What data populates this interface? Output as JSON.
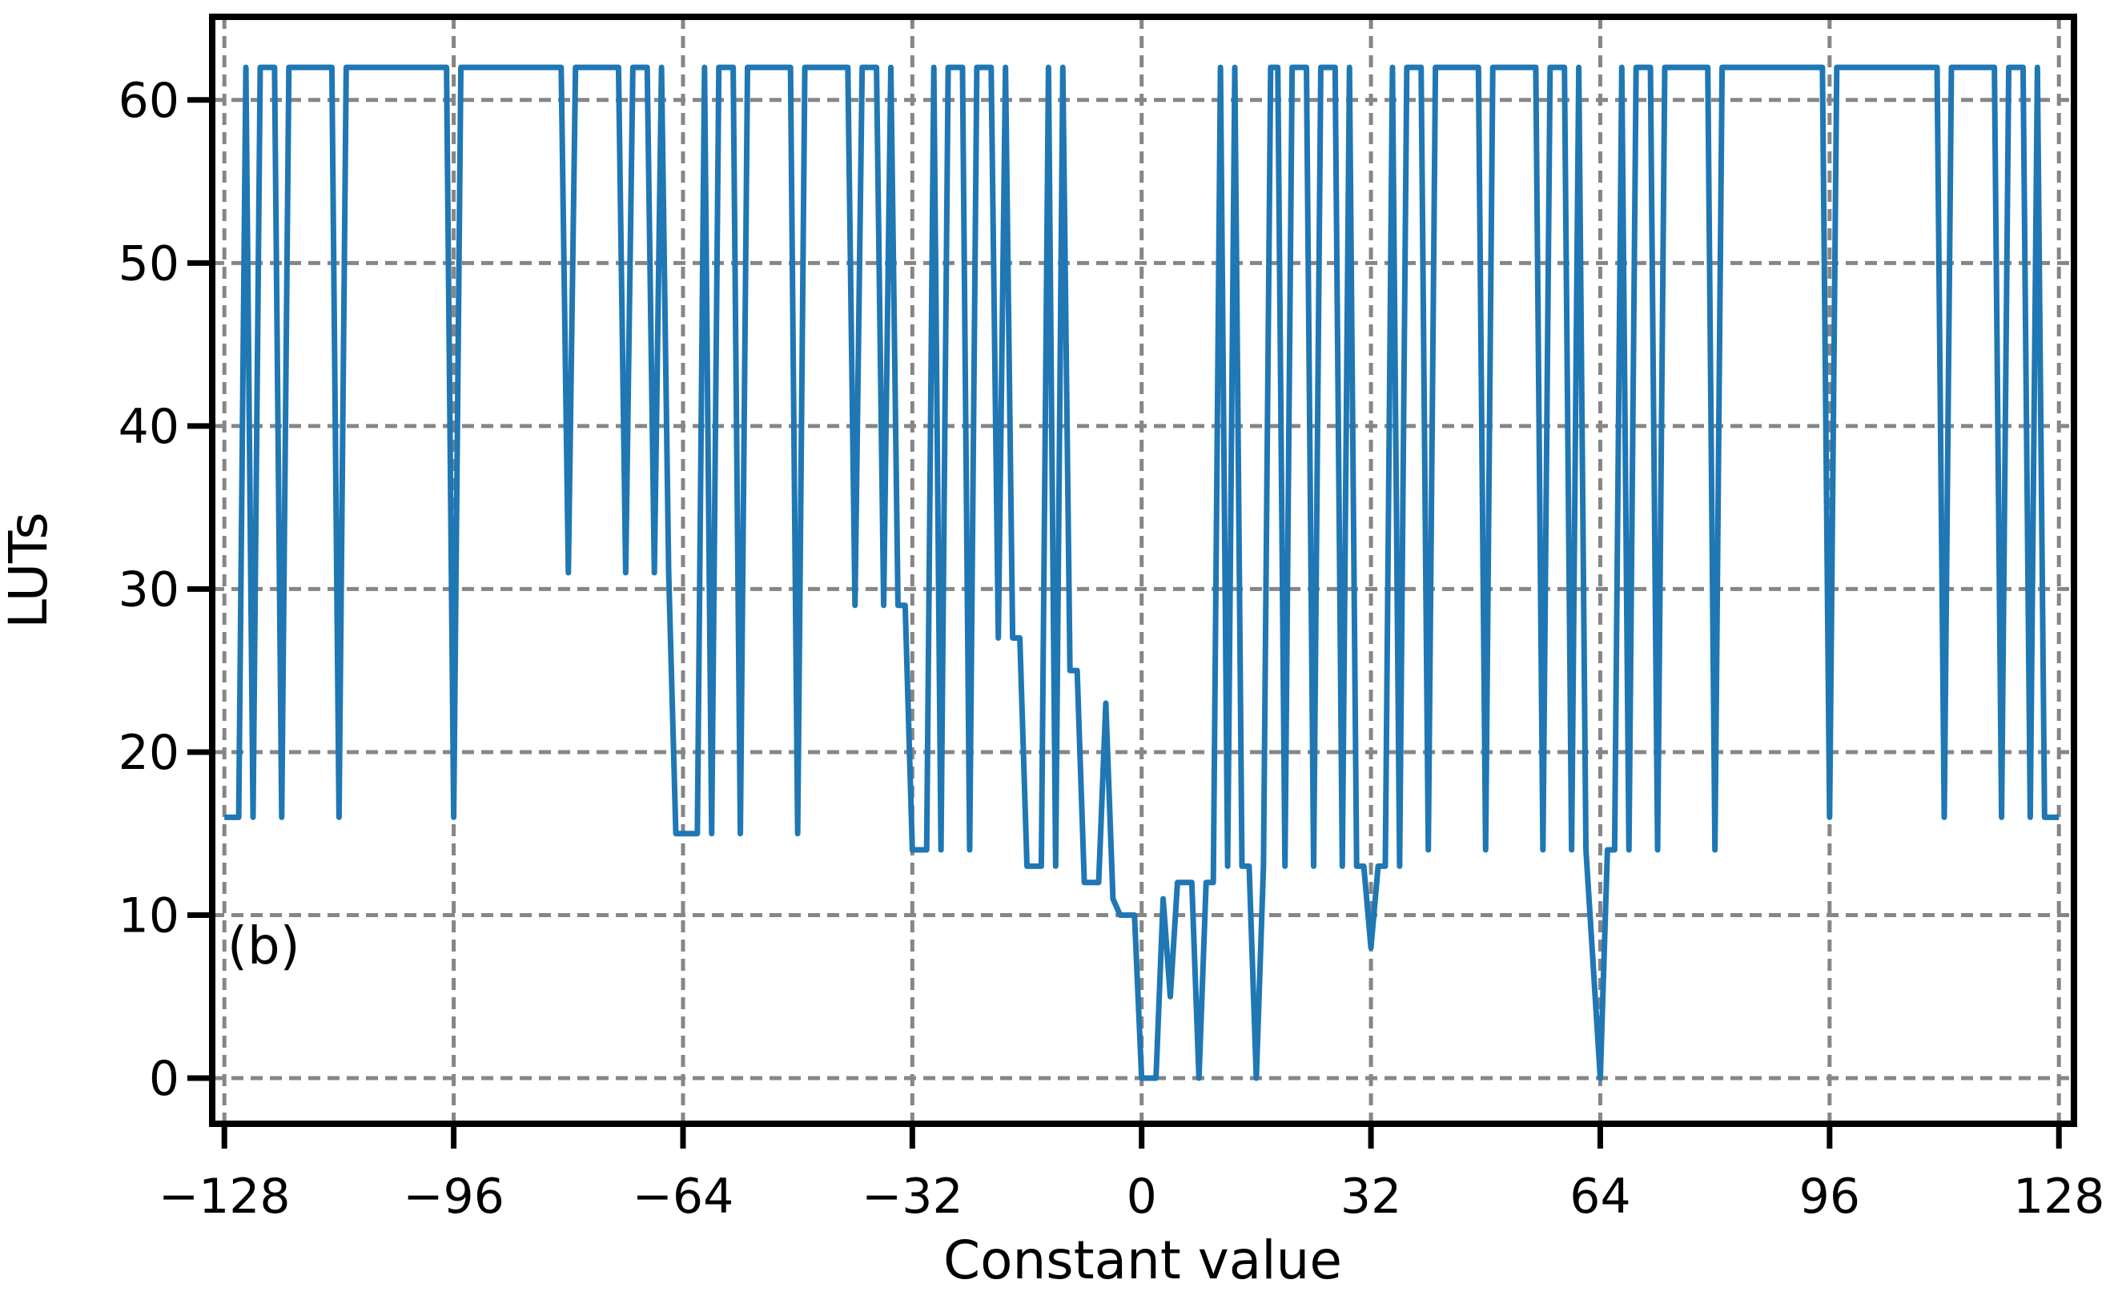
{
  "chart_data": {
    "type": "line",
    "title": "",
    "xlabel": "Constant value",
    "ylabel": "LUTs",
    "panel_label": "(b)",
    "x_start": -128,
    "x_step": 1,
    "xlim": [
      -129.7,
      130.1
    ],
    "ylim": [
      -2.8,
      65.1
    ],
    "xticks": [
      -128,
      -96,
      -64,
      -32,
      0,
      32,
      64,
      96,
      128
    ],
    "xtick_labels": [
      "−128",
      "−96",
      "−64",
      "−32",
      "0",
      "32",
      "64",
      "96",
      "128"
    ],
    "yticks": [
      0,
      10,
      20,
      30,
      40,
      50,
      60
    ],
    "ytick_labels": [
      "0",
      "10",
      "20",
      "30",
      "40",
      "50",
      "60"
    ],
    "grid": true,
    "grid_style": "dashed",
    "legend": "none",
    "line_color": "#1f77b4",
    "grid_color": "#868686",
    "spine_color": "#000000",
    "background_color": "#ffffff",
    "y_max_observed": 62,
    "y_min_observed": 0,
    "values": [
      16,
      16,
      16,
      62,
      16,
      62,
      62,
      62,
      16,
      62,
      62,
      62,
      62,
      62,
      62,
      62,
      16,
      62,
      62,
      62,
      62,
      62,
      62,
      62,
      62,
      62,
      62,
      62,
      62,
      62,
      62,
      62,
      16,
      62,
      62,
      62,
      62,
      62,
      62,
      62,
      62,
      62,
      62,
      62,
      62,
      62,
      62,
      62,
      31,
      62,
      62,
      62,
      62,
      62,
      62,
      62,
      31,
      62,
      62,
      62,
      31,
      62,
      31,
      15,
      15,
      15,
      15,
      62,
      15,
      62,
      62,
      62,
      15,
      62,
      62,
      62,
      62,
      62,
      62,
      62,
      15,
      62,
      62,
      62,
      62,
      62,
      62,
      62,
      29,
      62,
      62,
      62,
      29,
      62,
      29,
      29,
      14,
      14,
      14,
      62,
      14,
      62,
      62,
      62,
      14,
      62,
      62,
      62,
      27,
      62,
      27,
      27,
      13,
      13,
      13,
      62,
      13,
      62,
      25,
      25,
      12,
      12,
      12,
      23,
      11,
      10,
      10,
      10,
      0,
      0,
      0,
      11,
      5,
      12,
      12,
      12,
      0,
      12,
      12,
      62,
      13,
      62,
      13,
      13,
      0,
      13,
      62,
      62,
      13,
      62,
      62,
      62,
      13,
      62,
      62,
      62,
      13,
      62,
      13,
      13,
      8,
      13,
      13,
      62,
      13,
      62,
      62,
      62,
      14,
      62,
      62,
      62,
      62,
      62,
      62,
      62,
      14,
      62,
      62,
      62,
      62,
      62,
      62,
      62,
      14,
      62,
      62,
      62,
      14,
      62,
      14,
      7,
      0,
      14,
      14,
      62,
      14,
      62,
      62,
      62,
      14,
      62,
      62,
      62,
      62,
      62,
      62,
      62,
      14,
      62,
      62,
      62,
      62,
      62,
      62,
      62,
      62,
      62,
      62,
      62,
      62,
      62,
      62,
      62,
      16,
      62,
      62,
      62,
      62,
      62,
      62,
      62,
      62,
      62,
      62,
      62,
      62,
      62,
      62,
      62,
      16,
      62,
      62,
      62,
      62,
      62,
      62,
      62,
      16,
      62,
      62,
      62,
      16,
      62,
      16,
      16,
      16
    ]
  }
}
